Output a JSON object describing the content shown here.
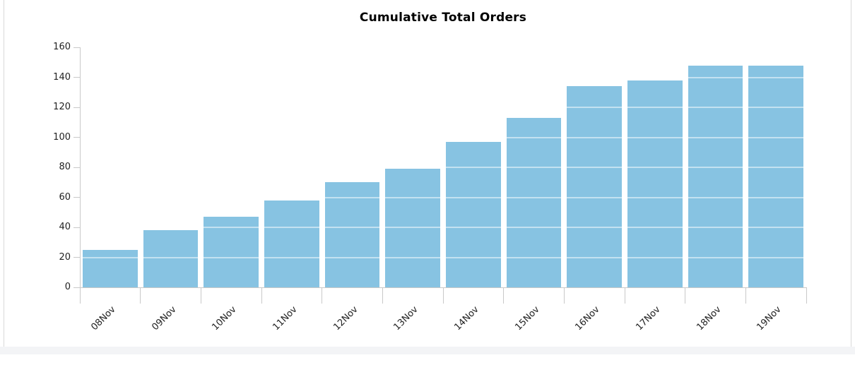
{
  "page": {
    "background": "#f3f4f6",
    "frame_background": "#ffffff",
    "frame_border_color": "#d9d9d9"
  },
  "chart_data": {
    "type": "bar",
    "title": "Cumulative Total Orders",
    "categories": [
      "08Nov",
      "09Nov",
      "10Nov",
      "11Nov",
      "12Nov",
      "13Nov",
      "14Nov",
      "15Nov",
      "16Nov",
      "17Nov",
      "18Nov",
      "19Nov"
    ],
    "values": [
      25,
      38,
      47,
      58,
      70,
      79,
      97,
      113,
      134,
      138,
      148,
      148
    ],
    "xlabel": "",
    "ylabel": "",
    "ylim": [
      0,
      160
    ],
    "ytick_step": 20,
    "ytick_labels": [
      "0",
      "20",
      "40",
      "60",
      "80",
      "100",
      "120",
      "140",
      "160"
    ],
    "x_label_rotation_deg": -45,
    "grid": "horizontal-lines-overlaying-bars",
    "legend_position": "none",
    "colors": {
      "bar": "#87c3e2",
      "axis": "#c9c9c9",
      "tick_label": "#222222",
      "title": "#000000",
      "grid_overlay": "rgba(255,255,255,0.5)"
    }
  }
}
